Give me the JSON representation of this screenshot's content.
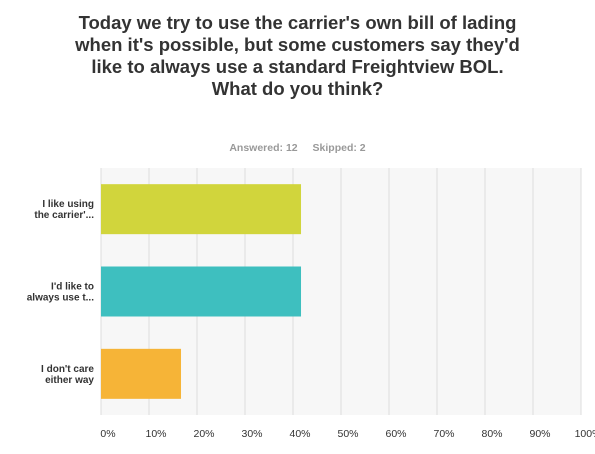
{
  "title": "Today we try to use the carrier's own bill of lading when it's possible, but some customers say they'd like to always use a standard Freightview BOL. What do you think?",
  "stats": {
    "answered": "Answered: 12",
    "skipped": "Skipped: 2"
  },
  "chart_data": {
    "type": "bar",
    "orientation": "horizontal",
    "categories": [
      [
        "I like using",
        "the carrier'..."
      ],
      [
        "I'd like to",
        "always use t..."
      ],
      [
        "I don't care",
        "either way"
      ]
    ],
    "values": [
      41.67,
      41.67,
      16.67
    ],
    "colors": [
      "#d1d53c",
      "#3ebfbf",
      "#f6b437"
    ],
    "xlim": [
      0,
      100
    ],
    "ticks": [
      "0%",
      "10%",
      "20%",
      "30%",
      "40%",
      "50%",
      "60%",
      "70%",
      "80%",
      "90%",
      "100%"
    ],
    "grid": true
  }
}
